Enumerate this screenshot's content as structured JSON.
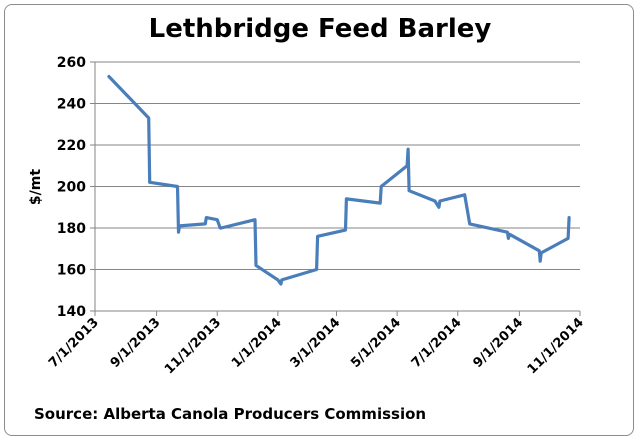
{
  "chart_data": {
    "type": "line",
    "title": "Lethbridge Feed Barley",
    "ylabel": "$/mt",
    "xlabel": "",
    "ylim": [
      140,
      260
    ],
    "yticks": [
      140,
      160,
      180,
      200,
      220,
      240,
      260
    ],
    "xticks": [
      "7/1/2013",
      "9/1/2013",
      "11/1/2013",
      "1/1/2014",
      "3/1/2014",
      "5/1/2014",
      "7/1/2014",
      "9/1/2014",
      "11/1/2014"
    ],
    "xrange": [
      "7/1/2013",
      "11/1/2014"
    ],
    "grid": true,
    "line_color": "#4a7ebb",
    "series": [
      {
        "points": [
          [
            "7/15/2013",
            253
          ],
          [
            "8/24/2013",
            233
          ],
          [
            "8/25/2013",
            202
          ],
          [
            "9/22/2013",
            200
          ],
          [
            "9/23/2013",
            178
          ],
          [
            "9/24/2013",
            181
          ],
          [
            "10/20/2013",
            182
          ],
          [
            "10/21/2013",
            185
          ],
          [
            "11/1/2013",
            184
          ],
          [
            "11/4/2013",
            180
          ],
          [
            "11/5/2013",
            180
          ],
          [
            "12/9/2013",
            184
          ],
          [
            "12/10/2013",
            162
          ],
          [
            "1/1/2014",
            155
          ],
          [
            "1/4/2014",
            153
          ],
          [
            "1/5/2014",
            155
          ],
          [
            "2/9/2014",
            160
          ],
          [
            "2/10/2014",
            176
          ],
          [
            "3/10/2014",
            179
          ],
          [
            "3/11/2014",
            194
          ],
          [
            "4/14/2014",
            192
          ],
          [
            "4/15/2014",
            200
          ],
          [
            "5/11/2014",
            210
          ],
          [
            "5/12/2014",
            218
          ],
          [
            "5/13/2014",
            198
          ],
          [
            "6/8/2014",
            193
          ],
          [
            "6/12/2014",
            190
          ],
          [
            "6/13/2014",
            193
          ],
          [
            "7/8/2014",
            196
          ],
          [
            "7/13/2014",
            182
          ],
          [
            "8/20/2014",
            178
          ],
          [
            "8/21/2014",
            175
          ],
          [
            "8/22/2014",
            177
          ],
          [
            "9/21/2014",
            169
          ],
          [
            "9/22/2014",
            164
          ],
          [
            "9/23/2014",
            168
          ],
          [
            "10/20/2014",
            175
          ],
          [
            "10/21/2014",
            185
          ]
        ]
      }
    ]
  },
  "source_text": "Source: Alberta Canola Producers Commission"
}
